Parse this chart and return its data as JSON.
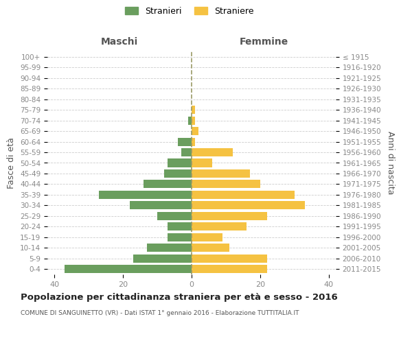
{
  "age_groups": [
    "0-4",
    "5-9",
    "10-14",
    "15-19",
    "20-24",
    "25-29",
    "30-34",
    "35-39",
    "40-44",
    "45-49",
    "50-54",
    "55-59",
    "60-64",
    "65-69",
    "70-74",
    "75-79",
    "80-84",
    "85-89",
    "90-94",
    "95-99",
    "100+"
  ],
  "birth_years": [
    "2011-2015",
    "2006-2010",
    "2001-2005",
    "1996-2000",
    "1991-1995",
    "1986-1990",
    "1981-1985",
    "1976-1980",
    "1971-1975",
    "1966-1970",
    "1961-1965",
    "1956-1960",
    "1951-1955",
    "1946-1950",
    "1941-1945",
    "1936-1940",
    "1931-1935",
    "1926-1930",
    "1921-1925",
    "1916-1920",
    "≤ 1915"
  ],
  "maschi": [
    37,
    17,
    13,
    7,
    7,
    10,
    18,
    27,
    14,
    8,
    7,
    3,
    4,
    0,
    1,
    0,
    0,
    0,
    0,
    0,
    0
  ],
  "femmine": [
    22,
    22,
    11,
    9,
    16,
    22,
    33,
    30,
    20,
    17,
    6,
    12,
    1,
    2,
    1,
    1,
    0,
    0,
    0,
    0,
    0
  ],
  "color_maschi": "#6a9e5e",
  "color_femmine": "#f5c242",
  "title": "Popolazione per cittadinanza straniera per età e sesso - 2016",
  "subtitle": "COMUNE DI SANGUINETTO (VR) - Dati ISTAT 1° gennaio 2016 - Elaborazione TUTTITALIA.IT",
  "ylabel_left": "Fasce di età",
  "ylabel_right": "Anni di nascita",
  "label_maschi": "Maschi",
  "label_femmine": "Femmine",
  "legend_maschi": "Stranieri",
  "legend_femmine": "Straniere",
  "xlim": 42,
  "bg_color": "#ffffff",
  "grid_color": "#cccccc",
  "tick_color": "#888888",
  "text_color": "#555555",
  "title_color": "#222222"
}
